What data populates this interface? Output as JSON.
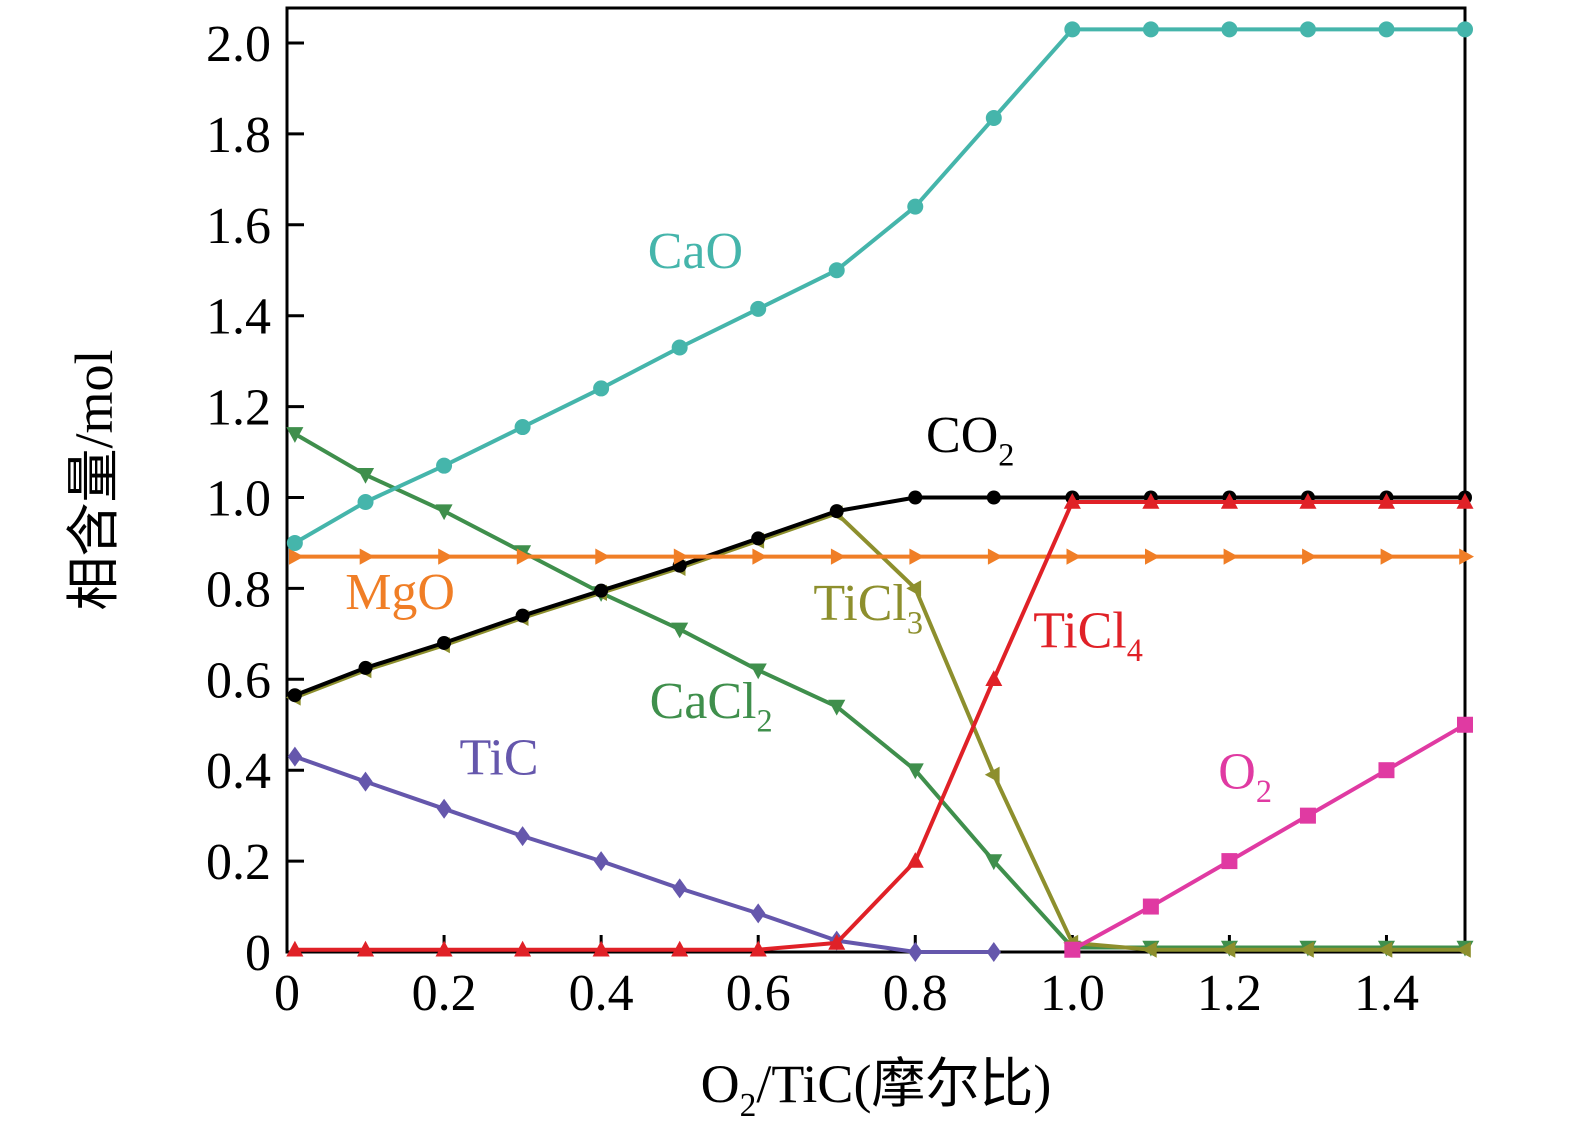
{
  "chart_data": {
    "type": "line",
    "title": "",
    "ylabel": "相含量/mol",
    "xlabel_segments": [
      {
        "t": "O"
      },
      {
        "t": "2",
        "sub": true
      },
      {
        "t": "/TiC(摩尔比)"
      }
    ],
    "xlim": [
      0,
      1.5
    ],
    "ylim": [
      0,
      2.077
    ],
    "grid": false,
    "legend": "inline-labels",
    "x_ticks": [
      0,
      0.2,
      0.4,
      0.6,
      0.8,
      1.0,
      1.2,
      1.4
    ],
    "x_tick_labels": [
      "0",
      "0.2",
      "0.4",
      "0.6",
      "0.8",
      "1.0",
      "1.2",
      "1.4"
    ],
    "y_ticks": [
      0,
      0.2,
      0.4,
      0.6,
      0.8,
      1.0,
      1.2,
      1.4,
      1.6,
      1.8,
      2.0
    ],
    "y_tick_labels": [
      "0",
      "0.2",
      "0.4",
      "0.6",
      "0.8",
      "1.0",
      "1.2",
      "1.4",
      "1.6",
      "1.8",
      "2.0"
    ],
    "x": [
      0.01,
      0.1,
      0.2,
      0.3,
      0.4,
      0.5,
      0.6,
      0.7,
      0.8,
      0.9,
      1.0,
      1.1,
      1.2,
      1.3,
      1.4,
      1.5
    ],
    "series": [
      {
        "name": "CaCl2",
        "label_segments": [
          {
            "t": "CaCl"
          },
          {
            "t": "2",
            "sub": true
          }
        ],
        "label_pos": [
          0.54,
          0.515
        ],
        "color": "#3f8f4c",
        "marker": "triangle-down",
        "msize": 9,
        "values": [
          1.14,
          1.05,
          0.97,
          0.88,
          0.79,
          0.71,
          0.62,
          0.54,
          0.4,
          0.2,
          0.01,
          0.01,
          0.01,
          0.01,
          0.01,
          0.01
        ]
      },
      {
        "name": "TiCl3",
        "label_segments": [
          {
            "t": "TiCl"
          },
          {
            "t": "3",
            "sub": true
          }
        ],
        "label_pos": [
          0.74,
          0.73
        ],
        "color": "#8d8f2d",
        "marker": "triangle-left",
        "msize": 9,
        "values": [
          0.56,
          0.62,
          0.675,
          0.735,
          0.79,
          0.845,
          0.905,
          0.965,
          0.8,
          0.39,
          0.02,
          0.005,
          0.005,
          0.005,
          0.005,
          0.005
        ]
      },
      {
        "name": "CO2",
        "label_segments": [
          {
            "t": "CO"
          },
          {
            "t": "2",
            "sub": true
          }
        ],
        "label_pos": [
          0.87,
          1.1
        ],
        "color": "#000000",
        "marker": "circle",
        "msize": 7,
        "values": [
          0.565,
          0.625,
          0.68,
          0.74,
          0.795,
          0.85,
          0.91,
          0.97,
          1.0,
          1.0,
          1.0,
          1.0,
          1.0,
          1.0,
          1.0,
          1.0
        ]
      },
      {
        "name": "TiC",
        "label_segments": [
          {
            "t": "TiC"
          }
        ],
        "label_pos": [
          0.27,
          0.39
        ],
        "color": "#6557ac",
        "marker": "diamond",
        "msize": 8,
        "values": [
          0.43,
          0.375,
          0.315,
          0.255,
          0.2,
          0.14,
          0.085,
          0.025,
          0.0,
          0.0,
          null,
          null,
          null,
          null,
          null,
          null
        ]
      },
      {
        "name": "MgO",
        "label_segments": [
          {
            "t": "MgO"
          }
        ],
        "label_pos": [
          0.144,
          0.755
        ],
        "color": "#f07e26",
        "marker": "triangle-right",
        "msize": 9,
        "values": [
          0.87,
          0.87,
          0.87,
          0.87,
          0.87,
          0.87,
          0.87,
          0.87,
          0.87,
          0.87,
          0.87,
          0.87,
          0.87,
          0.87,
          0.87,
          0.87
        ]
      },
      {
        "name": "TiCl4",
        "label_segments": [
          {
            "t": "TiCl"
          },
          {
            "t": "4",
            "sub": true
          }
        ],
        "label_pos": [
          1.02,
          0.67
        ],
        "color": "#e02127",
        "marker": "triangle-up",
        "msize": 9,
        "values": [
          0.005,
          0.005,
          0.005,
          0.005,
          0.005,
          0.005,
          0.005,
          0.02,
          0.2,
          0.6,
          0.99,
          0.99,
          0.99,
          0.99,
          0.99,
          0.99
        ]
      },
      {
        "name": "O2",
        "label_segments": [
          {
            "t": "O"
          },
          {
            "t": "2",
            "sub": true
          }
        ],
        "label_pos": [
          1.22,
          0.36
        ],
        "color": "#e03aa2",
        "marker": "square",
        "msize": 8,
        "values": [
          null,
          null,
          null,
          null,
          null,
          null,
          null,
          null,
          null,
          null,
          0.005,
          0.1,
          0.2,
          0.3,
          0.4,
          0.5
        ]
      },
      {
        "name": "CaO",
        "label_segments": [
          {
            "t": "CaO"
          }
        ],
        "label_pos": [
          0.52,
          1.505
        ],
        "color": "#45b5ab",
        "marker": "circle",
        "msize": 8,
        "values": [
          0.9,
          0.99,
          1.07,
          1.155,
          1.24,
          1.33,
          1.415,
          1.5,
          1.64,
          1.835,
          2.03,
          2.03,
          2.03,
          2.03,
          2.03,
          2.03
        ]
      }
    ]
  }
}
